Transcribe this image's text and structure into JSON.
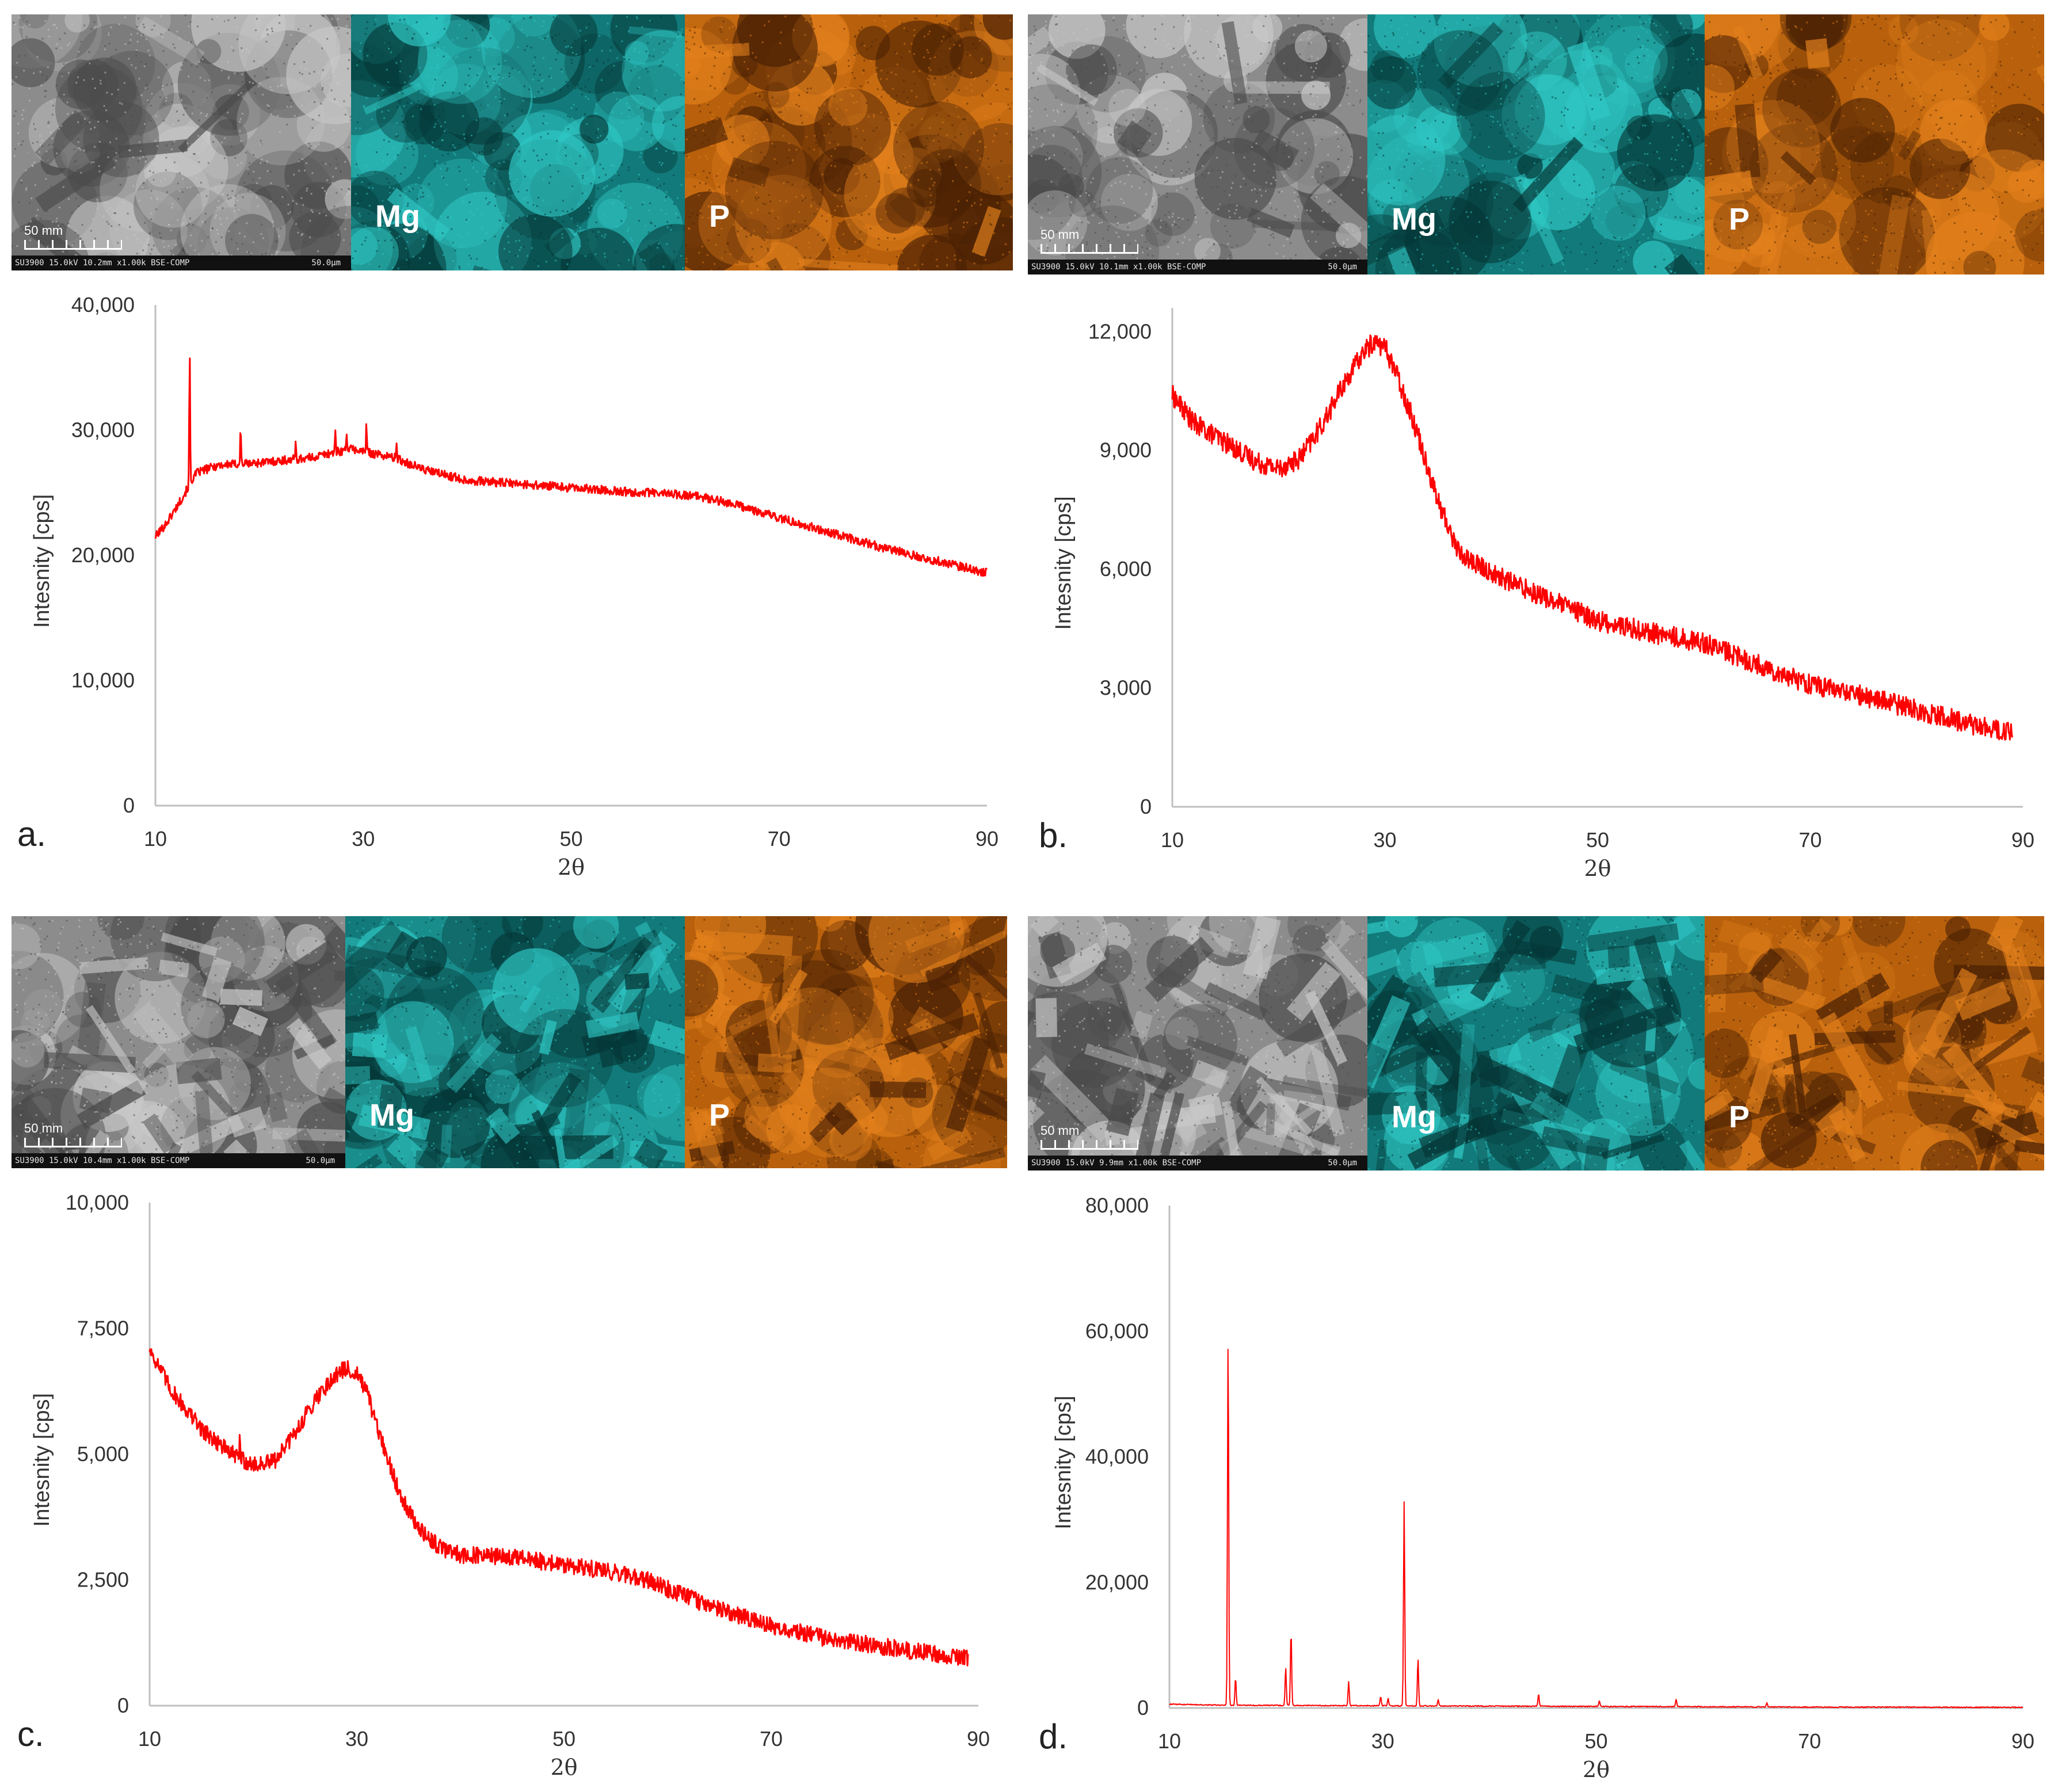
{
  "colors": {
    "curve": "#ff0000",
    "axis": "#bfbfbf",
    "mg": "#1aa5a5",
    "p": "#d9730d",
    "sem": "#9a9a9a"
  },
  "panels": [
    {
      "letter": "a.",
      "micrographs": {
        "mg_label": "Mg",
        "p_label": "P",
        "scale_label": "50 mm",
        "sem_info": "SU3900 15.0kV 10.2mm x1.00k BSE-COMP",
        "sem_scale": "50.0μm"
      }
    },
    {
      "letter": "b.",
      "micrographs": {
        "mg_label": "Mg",
        "p_label": "P",
        "scale_label": "50 mm",
        "sem_info": "SU3900 15.0kV 10.1mm x1.00k BSE-COMP",
        "sem_scale": "50.0μm"
      }
    },
    {
      "letter": "c.",
      "micrographs": {
        "mg_label": "Mg",
        "p_label": "P",
        "scale_label": "50 mm",
        "sem_info": "SU3900 15.0kV 10.4mm x1.00k BSE-COMP",
        "sem_scale": "50.0μm"
      }
    },
    {
      "letter": "d.",
      "micrographs": {
        "mg_label": "Mg",
        "p_label": "P",
        "scale_label": "50 mm",
        "sem_info": "SU3900 15.0kV 9.9mm x1.00k BSE-COMP",
        "sem_scale": "50.0μm"
      }
    }
  ],
  "chart_data": [
    {
      "type": "line",
      "panel": "a.",
      "xlabel": "2θ",
      "ylabel": "Intesnity [cps]",
      "xlim": [
        10,
        90
      ],
      "ylim": [
        0,
        40000
      ],
      "xticks": [
        "10",
        "30",
        "50",
        "70",
        "90"
      ],
      "yticks": [
        "0",
        "10,000",
        "20,000",
        "30,000",
        "40,000"
      ],
      "noise": 350,
      "x": [
        10,
        11,
        12,
        13,
        13.5,
        14,
        16,
        20,
        25,
        27,
        29,
        30,
        33,
        36,
        40,
        45,
        50,
        55,
        60,
        63,
        66,
        70,
        75,
        80,
        85,
        90
      ],
      "y": [
        21500,
        22500,
        23800,
        25200,
        26000,
        26600,
        27200,
        27400,
        27800,
        28200,
        28500,
        28300,
        27800,
        26800,
        26000,
        25700,
        25400,
        25100,
        24900,
        24600,
        24000,
        23000,
        21800,
        20600,
        19600,
        18600
      ],
      "peaks": [
        {
          "x": 13.3,
          "y": 36000
        },
        {
          "x": 18.2,
          "y": 30200
        },
        {
          "x": 23.5,
          "y": 29000
        },
        {
          "x": 27.3,
          "y": 29900
        },
        {
          "x": 28.4,
          "y": 30000
        },
        {
          "x": 30.3,
          "y": 30400
        },
        {
          "x": 33.2,
          "y": 29100
        }
      ]
    },
    {
      "type": "line",
      "panel": "b.",
      "xlabel": "2θ",
      "ylabel": "Intesnity [cps]",
      "xlim": [
        10,
        90
      ],
      "ylim": [
        0,
        12600
      ],
      "xticks": [
        "10",
        "30",
        "50",
        "70",
        "90"
      ],
      "yticks": [
        "0",
        "3,000",
        "6,000",
        "9,000",
        "12,000"
      ],
      "noise": 260,
      "x": [
        10,
        12,
        15,
        18,
        20,
        22,
        24,
        26,
        28,
        29,
        30,
        31,
        33,
        35,
        37,
        40,
        45,
        50,
        55,
        60,
        65,
        70,
        75,
        80,
        85,
        89
      ],
      "y": [
        10400,
        9700,
        9200,
        8700,
        8550,
        8800,
        9600,
        10600,
        11500,
        11750,
        11600,
        11000,
        9500,
        7700,
        6400,
        5900,
        5300,
        4700,
        4400,
        4150,
        3600,
        3100,
        2800,
        2450,
        2100,
        1850
      ]
    },
    {
      "type": "line",
      "panel": "c.",
      "xlabel": "2θ",
      "ylabel": "Intesnity [cps]",
      "xlim": [
        10,
        90
      ],
      "ylim": [
        0,
        10000
      ],
      "xticks": [
        "10",
        "30",
        "50",
        "70",
        "90"
      ],
      "yticks": [
        "0",
        "2,500",
        "5,000",
        "7,500",
        "10,000"
      ],
      "noise": 170,
      "x": [
        10,
        12,
        15,
        18,
        20,
        22,
        24,
        26,
        28,
        29,
        30,
        31,
        32,
        34,
        36,
        38,
        40,
        45,
        50,
        55,
        58,
        62,
        66,
        70,
        75,
        80,
        85,
        89
      ],
      "y": [
        7100,
        6300,
        5500,
        5000,
        4780,
        4850,
        5400,
        6100,
        6600,
        6700,
        6600,
        6200,
        5500,
        4300,
        3500,
        3150,
        3000,
        2950,
        2800,
        2650,
        2500,
        2150,
        1850,
        1600,
        1350,
        1200,
        1050,
        950
      ],
      "peaks": [
        {
          "x": 18.7,
          "y": 5300
        }
      ]
    },
    {
      "type": "line",
      "panel": "d.",
      "xlabel": "2θ",
      "ylabel": "Intesnity [cps]",
      "xlim": [
        10,
        90
      ],
      "ylim": [
        0,
        80000
      ],
      "xticks": [
        "10",
        "30",
        "50",
        "70",
        "90"
      ],
      "yticks": [
        "0",
        "20,000",
        "40,000",
        "60,000",
        "80,000"
      ],
      "noise": 80,
      "x": [
        10,
        15,
        30,
        50,
        70,
        90
      ],
      "y": [
        600,
        450,
        350,
        250,
        150,
        100
      ],
      "peaks": [
        {
          "x": 15.5,
          "y": 59000
        },
        {
          "x": 16.2,
          "y": 4800
        },
        {
          "x": 20.9,
          "y": 6500
        },
        {
          "x": 21.4,
          "y": 12300
        },
        {
          "x": 26.8,
          "y": 4200
        },
        {
          "x": 29.8,
          "y": 1800
        },
        {
          "x": 30.5,
          "y": 1600
        },
        {
          "x": 32.0,
          "y": 32900
        },
        {
          "x": 33.3,
          "y": 7800
        },
        {
          "x": 35.2,
          "y": 1300
        },
        {
          "x": 44.6,
          "y": 2300
        },
        {
          "x": 50.3,
          "y": 1200
        },
        {
          "x": 57.5,
          "y": 1400
        },
        {
          "x": 66.0,
          "y": 800
        }
      ]
    }
  ]
}
